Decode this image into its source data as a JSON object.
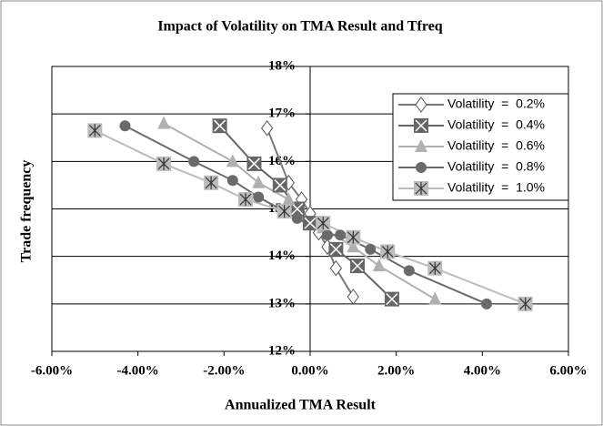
{
  "chart_data": {
    "type": "scatter",
    "title": "Impact of Volatility on TMA Result and Tfreq",
    "x_label": "Annualized TMA Result",
    "y_label": "Trade  frequency",
    "xlim": [
      -6,
      6
    ],
    "ylim": [
      12,
      18
    ],
    "xticks": [
      {
        "value": -6,
        "label": "-6.00%"
      },
      {
        "value": -4,
        "label": "-4.00%"
      },
      {
        "value": -2,
        "label": "-2.00%"
      },
      {
        "value": 0,
        "label": "0.00%"
      },
      {
        "value": 2,
        "label": "2.00%"
      },
      {
        "value": 4,
        "label": "4.00%"
      },
      {
        "value": 6,
        "label": "6.00%"
      }
    ],
    "yticks": [
      {
        "value": 12,
        "label": "12%"
      },
      {
        "value": 13,
        "label": "13%"
      },
      {
        "value": 14,
        "label": "14%"
      },
      {
        "value": 15,
        "label": "15%"
      },
      {
        "value": 16,
        "label": "16%"
      },
      {
        "value": 17,
        "label": "17%"
      },
      {
        "value": 18,
        "label": "18%"
      }
    ],
    "grid": true,
    "legend": "right",
    "series": [
      {
        "name": "Volatility  =  0.2%",
        "color": "#777777",
        "marker": "diamond",
        "marker_fill": "#ffffff",
        "x": [
          -1.0,
          -0.5,
          -0.2,
          0.0,
          0.2,
          0.4,
          0.6,
          1.0
        ],
        "values": [
          16.7,
          15.55,
          15.2,
          14.9,
          14.5,
          14.2,
          13.75,
          13.15
        ]
      },
      {
        "name": "Volatility  =  0.4%",
        "color": "#666666",
        "marker": "xsquare",
        "marker_fill": "#666666",
        "x": [
          -2.1,
          -1.3,
          -0.7,
          -0.3,
          0.0,
          0.6,
          1.1,
          1.9
        ],
        "values": [
          16.75,
          15.95,
          15.5,
          15.0,
          14.7,
          14.15,
          13.8,
          13.1
        ]
      },
      {
        "name": "Volatility  =  0.6%",
        "color": "#b0b0b0",
        "marker": "triangle",
        "marker_fill": "#b0b0b0",
        "x": [
          -3.4,
          -1.8,
          -1.2,
          -0.5,
          0.3,
          1.0,
          1.6,
          2.9
        ],
        "values": [
          16.8,
          16.0,
          15.55,
          15.2,
          14.6,
          14.2,
          13.8,
          13.1
        ]
      },
      {
        "name": "Volatility  =  0.8%",
        "color": "#6a6a6a",
        "marker": "circle",
        "marker_fill": "#6a6a6a",
        "x": [
          -4.3,
          -2.7,
          -1.8,
          -1.2,
          -0.3,
          0.4,
          0.7,
          1.4,
          2.3,
          4.1
        ],
        "values": [
          16.75,
          16.0,
          15.6,
          15.25,
          14.8,
          14.45,
          14.45,
          14.15,
          13.7,
          13.0
        ]
      },
      {
        "name": "Volatility  =  1.0%",
        "color": "#bcbcbc",
        "marker": "star",
        "marker_fill": "#bcbcbc",
        "x": [
          -5.0,
          -3.4,
          -2.3,
          -1.5,
          -0.6,
          0.3,
          1.0,
          1.8,
          2.9,
          5.0
        ],
        "values": [
          16.65,
          15.95,
          15.55,
          15.2,
          14.95,
          14.7,
          14.4,
          14.1,
          13.75,
          13.0
        ]
      }
    ]
  }
}
